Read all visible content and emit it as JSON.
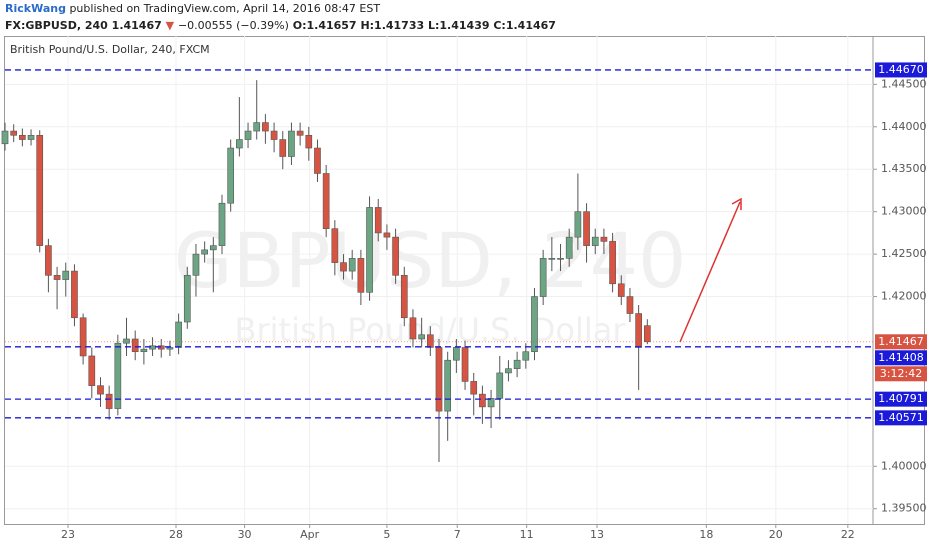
{
  "header": {
    "author": "RickWang",
    "published": "published on TradingView.com, April 14, 2016 08:47 EST",
    "symbol": "FX:GBPUSD, 240",
    "price": "1.41467",
    "arrow": "▼",
    "change": "−0.00555 (−0.39%)",
    "open": "O:1.41657",
    "high": "H:1.41733",
    "low": "L:1.41439",
    "close": "C:1.41467"
  },
  "chart_data": {
    "type": "candlestick",
    "legend": "British Pound/U.S. Dollar, 240, FXCM",
    "watermark": "GBPUSD, 240",
    "watermark_sub": "British Pound/U.S. Dollar",
    "up_color": "#6ba583",
    "down_color": "#d75442",
    "x": [
      0,
      1,
      2,
      3,
      4,
      5,
      6,
      7,
      8,
      9,
      10,
      11,
      12,
      13,
      14,
      15,
      16,
      17,
      18,
      19,
      20,
      21,
      22,
      23,
      24,
      25,
      26,
      27,
      28,
      29,
      30,
      31,
      32,
      33,
      34,
      35,
      36,
      37,
      38,
      39,
      40,
      41,
      42,
      43,
      44,
      45,
      46,
      47,
      48,
      49,
      50,
      51,
      52,
      53,
      54,
      55,
      56,
      57,
      58,
      59,
      60,
      61,
      62,
      63,
      64,
      65,
      66,
      67,
      68,
      69,
      70,
      71,
      72,
      73,
      74
    ],
    "open": [
      1.438,
      1.4395,
      1.439,
      1.4385,
      1.439,
      1.426,
      1.4225,
      1.422,
      1.423,
      1.4175,
      1.413,
      1.4095,
      1.4085,
      1.4068,
      1.4145,
      1.415,
      1.4135,
      1.4138,
      1.4142,
      1.4138,
      1.414,
      1.417,
      1.4225,
      1.425,
      1.4255,
      1.426,
      1.431,
      1.4375,
      1.4385,
      1.4395,
      1.4405,
      1.4395,
      1.4385,
      1.4365,
      1.4395,
      1.439,
      1.4375,
      1.4345,
      1.428,
      1.424,
      1.423,
      1.4245,
      1.4205,
      1.4305,
      1.4275,
      1.427,
      1.4225,
      1.4175,
      1.415,
      1.4155,
      1.414,
      1.4065,
      1.4125,
      1.414,
      1.41,
      1.4085,
      1.407,
      1.408,
      1.411,
      1.4115,
      1.4125,
      1.4135,
      1.42,
      1.4245,
      1.4245,
      1.4245,
      1.427,
      1.43,
      1.426,
      1.427,
      1.4265,
      1.4215,
      1.42,
      1.418,
      1.41657
    ],
    "high": [
      1.4405,
      1.4403,
      1.4398,
      1.4397,
      1.4396,
      1.4268,
      1.4235,
      1.424,
      1.4238,
      1.418,
      1.414,
      1.4105,
      1.4095,
      1.4155,
      1.4175,
      1.416,
      1.415,
      1.4152,
      1.415,
      1.4148,
      1.418,
      1.4235,
      1.4262,
      1.4265,
      1.427,
      1.432,
      1.4385,
      1.4435,
      1.4405,
      1.4455,
      1.4415,
      1.4405,
      1.4395,
      1.4405,
      1.4405,
      1.44,
      1.4385,
      1.4355,
      1.429,
      1.425,
      1.4255,
      1.4255,
      1.4318,
      1.4315,
      1.4285,
      1.428,
      1.4235,
      1.4185,
      1.4175,
      1.4165,
      1.415,
      1.4135,
      1.415,
      1.4148,
      1.411,
      1.4095,
      1.409,
      1.413,
      1.4125,
      1.4135,
      1.4145,
      1.421,
      1.4255,
      1.427,
      1.4262,
      1.428,
      1.4345,
      1.431,
      1.428,
      1.428,
      1.4275,
      1.4225,
      1.421,
      1.419,
      1.41733
    ],
    "low": [
      1.4372,
      1.4382,
      1.4377,
      1.4378,
      1.4252,
      1.4205,
      1.4185,
      1.42,
      1.4165,
      1.412,
      1.408,
      1.407,
      1.4055,
      1.406,
      1.413,
      1.4125,
      1.412,
      1.413,
      1.4128,
      1.413,
      1.4132,
      1.4162,
      1.42,
      1.424,
      1.4205,
      1.425,
      1.43,
      1.4365,
      1.4375,
      1.4385,
      1.438,
      1.437,
      1.435,
      1.4355,
      1.4378,
      1.436,
      1.4335,
      1.427,
      1.4225,
      1.422,
      1.422,
      1.419,
      1.4195,
      1.4265,
      1.4255,
      1.4215,
      1.4165,
      1.414,
      1.414,
      1.413,
      1.4005,
      1.403,
      1.411,
      1.409,
      1.406,
      1.405,
      1.4045,
      1.4055,
      1.41,
      1.4105,
      1.4115,
      1.4125,
      1.419,
      1.423,
      1.423,
      1.4235,
      1.4255,
      1.424,
      1.425,
      1.425,
      1.4205,
      1.419,
      1.417,
      1.409,
      1.41439
    ],
    "close": [
      1.4395,
      1.439,
      1.4385,
      1.439,
      1.426,
      1.4225,
      1.422,
      1.423,
      1.4175,
      1.413,
      1.4095,
      1.4085,
      1.4068,
      1.4145,
      1.415,
      1.4135,
      1.4138,
      1.4142,
      1.4138,
      1.414,
      1.417,
      1.4225,
      1.425,
      1.4255,
      1.426,
      1.431,
      1.4375,
      1.4385,
      1.4395,
      1.4405,
      1.4395,
      1.4385,
      1.4365,
      1.4395,
      1.439,
      1.4375,
      1.4345,
      1.428,
      1.424,
      1.423,
      1.4245,
      1.4205,
      1.4305,
      1.4275,
      1.427,
      1.4225,
      1.4175,
      1.415,
      1.4155,
      1.414,
      1.4065,
      1.4125,
      1.414,
      1.41,
      1.4085,
      1.407,
      1.408,
      1.411,
      1.4115,
      1.4125,
      1.4135,
      1.42,
      1.4245,
      1.4245,
      1.4245,
      1.427,
      1.43,
      1.426,
      1.427,
      1.4265,
      1.4215,
      1.42,
      1.418,
      1.414,
      1.41467
    ],
    "xlim": [
      0,
      100
    ],
    "ylim": [
      1.3932,
      1.4507
    ],
    "xticks": [
      {
        "value": 7.26,
        "label": "23"
      },
      {
        "value": 19.7,
        "label": "28"
      },
      {
        "value": 27.6,
        "label": "30"
      },
      {
        "value": 35.1,
        "label": "Apr"
      },
      {
        "value": 44,
        "label": "5"
      },
      {
        "value": 52.1,
        "label": "7"
      },
      {
        "value": 60.1,
        "label": "11"
      },
      {
        "value": 68.2,
        "label": "13"
      },
      {
        "value": 80.8,
        "label": "18"
      },
      {
        "value": 88.8,
        "label": "20"
      },
      {
        "value": 97.1,
        "label": "22"
      }
    ],
    "yticks": [
      {
        "value": 1.445,
        "label": "1.44500"
      },
      {
        "value": 1.44,
        "label": "1.44000"
      },
      {
        "value": 1.435,
        "label": "1.43500"
      },
      {
        "value": 1.43,
        "label": "1.43000"
      },
      {
        "value": 1.425,
        "label": "1.42500"
      },
      {
        "value": 1.42,
        "label": "1.42000"
      },
      {
        "value": 1.4,
        "label": "1.40000"
      },
      {
        "value": 1.395,
        "label": "1.39500"
      }
    ],
    "grid": true,
    "levels": [
      {
        "value": 1.4467,
        "label": "1.44670"
      },
      {
        "value": 1.41408,
        "label": "1.41408"
      },
      {
        "value": 1.40791,
        "label": "1.40791"
      },
      {
        "value": 1.40571,
        "label": "1.40571"
      }
    ],
    "level_color": "#1a1ad8",
    "last_price": {
      "value": 1.41467,
      "label": "1.41467"
    },
    "countdown": "3:12:42",
    "last_color": "#d75442"
  }
}
